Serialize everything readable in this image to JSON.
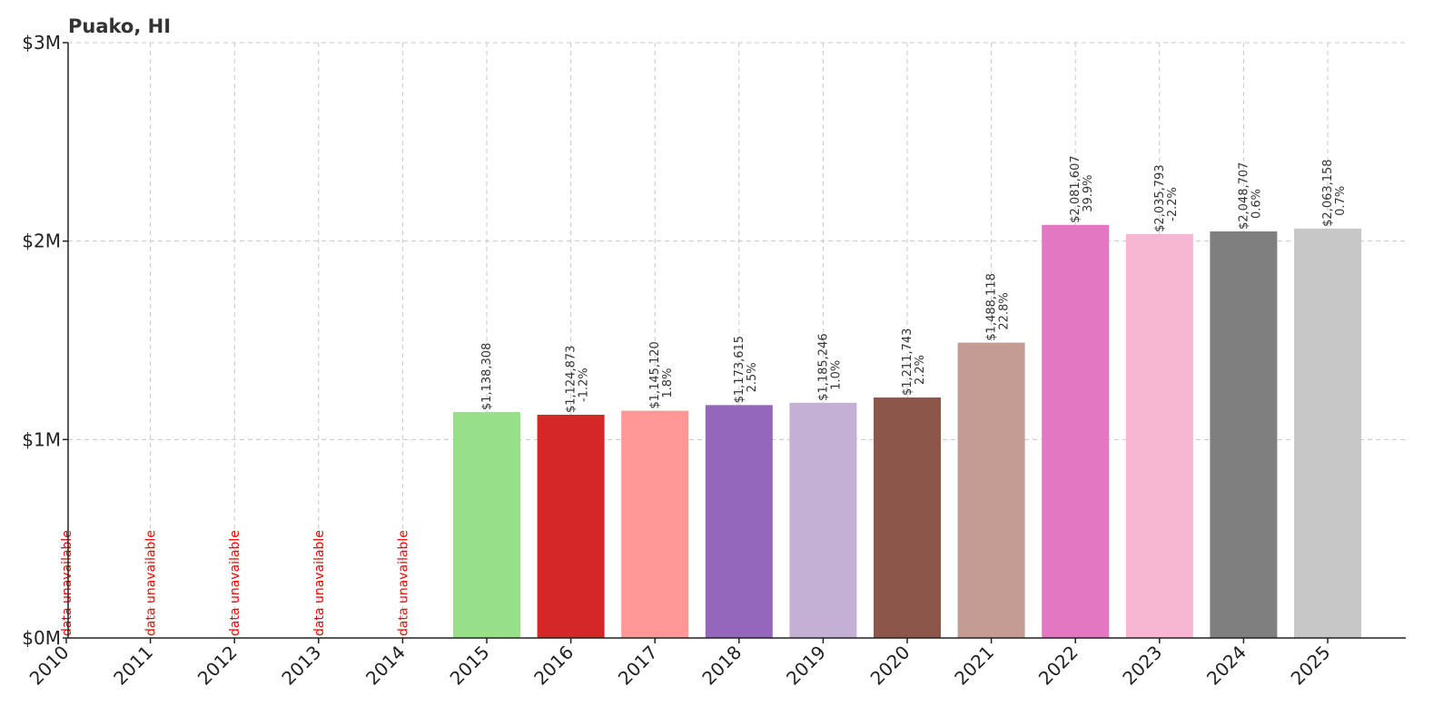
{
  "chart_data": {
    "type": "bar",
    "title": "Puako, HI",
    "xlabel": "",
    "ylabel": "",
    "ylim": [
      0,
      3000000
    ],
    "yticks": [
      {
        "value": 0,
        "label": "$0M"
      },
      {
        "value": 1000000,
        "label": "$1M"
      },
      {
        "value": 2000000,
        "label": "$2M"
      },
      {
        "value": 3000000,
        "label": "$3M"
      }
    ],
    "grid": true,
    "unavailable_label": "data unavailable",
    "categories": [
      "2010",
      "2011",
      "2012",
      "2013",
      "2014",
      "2015",
      "2016",
      "2017",
      "2018",
      "2019",
      "2020",
      "2021",
      "2022",
      "2023",
      "2024",
      "2025"
    ],
    "values": [
      null,
      null,
      null,
      null,
      null,
      1138308,
      1124873,
      1145120,
      1173615,
      1185246,
      1211743,
      1488118,
      2081607,
      2035793,
      2048707,
      2063158
    ],
    "value_labels": [
      "",
      "",
      "",
      "",
      "",
      "$1,138,308",
      "$1,124,873",
      "$1,145,120",
      "$1,173,615",
      "$1,185,246",
      "$1,211,743",
      "$1,488,118",
      "$2,081,607",
      "$2,035,793",
      "$2,048,707",
      "$2,063,158"
    ],
    "change_labels": [
      "",
      "",
      "",
      "",
      "",
      "",
      "-1.2%",
      "1.8%",
      "2.5%",
      "1.0%",
      "2.2%",
      "22.8%",
      "39.9%",
      "-2.2%",
      "0.6%",
      "0.7%"
    ],
    "colors": [
      "",
      "",
      "",
      "",
      "",
      "#98df8a",
      "#d62728",
      "#ff9896",
      "#9467bd",
      "#c5b0d5",
      "#8c564b",
      "#c49c94",
      "#e377c2",
      "#f7b6d2",
      "#7f7f7f",
      "#c7c7c7"
    ]
  }
}
